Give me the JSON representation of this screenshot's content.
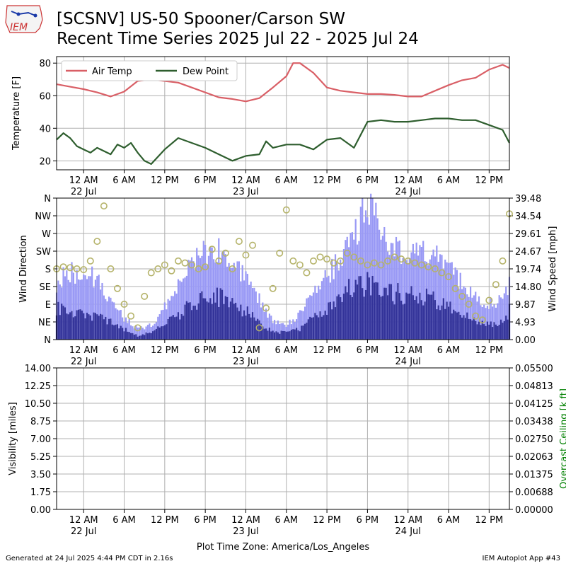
{
  "header": {
    "logo_text": "IEM",
    "title_line1": "[SCSNV] US-50 Spooner/Carson SW",
    "title_line2": "Recent Time Series 2025 Jul 22 - 2025 Jul 24"
  },
  "footer": {
    "generated": "Generated at 24 Jul 2025 4:44 PM CDT in 2.16s",
    "app": "IEM Autoplot App #43"
  },
  "colors": {
    "air_temp": "#d95f66",
    "dew_point": "#2e5e2e",
    "gust_bar": "#9999f5",
    "speed_bar": "#333399",
    "direction_marker": "#b5b36a",
    "ceiling_label": "#008000",
    "grid": "#b0b0b0"
  },
  "chart_data": [
    {
      "type": "line",
      "panel": "temperature",
      "ylabel": "Temperature [F]",
      "ylim": [
        14.5,
        84
      ],
      "yticks": [
        "20",
        "40",
        "60",
        "80"
      ],
      "xlim_hours": [
        0,
        67
      ],
      "xticks": [
        {
          "label": "12 AM",
          "sub": "22 Jul"
        },
        {
          "label": "6 AM",
          "sub": ""
        },
        {
          "label": "12 PM",
          "sub": ""
        },
        {
          "label": "6 PM",
          "sub": ""
        },
        {
          "label": "12 AM",
          "sub": "23 Jul"
        },
        {
          "label": "6 AM",
          "sub": ""
        },
        {
          "label": "12 PM",
          "sub": ""
        },
        {
          "label": "6 PM",
          "sub": ""
        },
        {
          "label": "12 AM",
          "sub": "24 Jul"
        },
        {
          "label": "6 AM",
          "sub": ""
        },
        {
          "label": "12 PM",
          "sub": ""
        }
      ],
      "legend": {
        "placement": "upper-left",
        "entries": [
          "Air Temp",
          "Dew Point"
        ]
      },
      "grid": true,
      "series": [
        {
          "name": "Air Temp",
          "x": [
            0,
            2,
            4,
            6,
            8,
            10,
            12,
            14,
            16,
            18,
            20,
            22,
            24,
            26,
            28,
            30,
            32,
            34,
            35,
            36,
            38,
            40,
            42,
            44,
            46,
            48,
            50,
            52,
            54,
            56,
            58,
            60,
            62,
            64,
            66,
            67
          ],
          "y": [
            67,
            65.5,
            64,
            62,
            59.5,
            62.5,
            69,
            70,
            69,
            68,
            65,
            62,
            59,
            58,
            56.5,
            58.5,
            65,
            72,
            80,
            80,
            74,
            65,
            63,
            62,
            61,
            61,
            60.5,
            59.5,
            59.5,
            63,
            66.5,
            69.5,
            71,
            76,
            79,
            77
          ]
        },
        {
          "name": "Dew Point",
          "x": [
            0,
            1,
            2,
            3,
            4,
            5,
            6,
            8,
            9,
            10,
            11,
            12,
            13,
            14,
            16,
            18,
            20,
            22,
            24,
            26,
            28,
            30,
            31,
            32,
            34,
            36,
            38,
            40,
            42,
            44,
            46,
            48,
            50,
            52,
            54,
            56,
            58,
            60,
            62,
            64,
            66,
            67
          ],
          "y": [
            33,
            37,
            34,
            29,
            27,
            25,
            28,
            24,
            30,
            28,
            31,
            25,
            20,
            18,
            27,
            34,
            31,
            28,
            24,
            20,
            23,
            24,
            32,
            28,
            30,
            30,
            27,
            33,
            34,
            28,
            44,
            45,
            44,
            44,
            45,
            46,
            46,
            45,
            45,
            42,
            39,
            31
          ]
        }
      ]
    },
    {
      "type": "bar",
      "panel": "wind",
      "ylabel": "Wind Direction",
      "ylabel_right": "Wind Speed [mph]",
      "yticks_left": [
        "N",
        "NE",
        "E",
        "SE",
        "S",
        "SW",
        "W",
        "NW",
        "N"
      ],
      "yticks_right": [
        "0.00",
        "4.93",
        "9.87",
        "14.80",
        "19.74",
        "24.67",
        "29.61",
        "34.54",
        "39.48"
      ],
      "ylim_speed": [
        0,
        39.48
      ],
      "ylim_direction": [
        0,
        360
      ],
      "xlim_hours": [
        0,
        67
      ],
      "grid": true,
      "series": [
        {
          "name": "Wind Gust",
          "x": [
            0,
            2,
            4,
            6,
            8,
            10,
            12,
            14,
            16,
            18,
            20,
            22,
            24,
            26,
            28,
            30,
            32,
            34,
            36,
            38,
            40,
            42,
            44,
            46,
            48,
            50,
            52,
            54,
            56,
            58,
            60,
            62,
            64,
            66,
            67
          ],
          "values": [
            16,
            19,
            19,
            17,
            11,
            6,
            3,
            4,
            9,
            16,
            21,
            25,
            25,
            20,
            17,
            11,
            5,
            4,
            7,
            13,
            18,
            22,
            30,
            37,
            32,
            25,
            24,
            25,
            23,
            20,
            16,
            12,
            10,
            11,
            16
          ]
        },
        {
          "name": "Wind Speed",
          "x": [
            0,
            2,
            4,
            6,
            8,
            10,
            12,
            14,
            16,
            18,
            20,
            22,
            24,
            26,
            28,
            30,
            32,
            34,
            36,
            38,
            40,
            42,
            44,
            46,
            48,
            50,
            52,
            54,
            56,
            58,
            60,
            62,
            64,
            66,
            67
          ],
          "values": [
            9,
            8,
            7,
            6,
            5,
            3,
            1,
            2,
            4,
            7,
            10,
            12,
            12,
            10,
            8,
            5,
            2,
            2,
            3,
            6,
            9,
            12,
            15,
            16,
            15,
            13,
            12,
            12,
            11,
            9,
            7,
            5,
            4,
            5,
            8
          ]
        },
        {
          "name": "Wind Direction",
          "marker": "circle",
          "x": [
            0,
            1,
            2,
            3,
            4,
            5,
            6,
            7,
            8,
            9,
            10,
            11,
            12,
            13,
            14,
            15,
            16,
            17,
            18,
            19,
            20,
            21,
            22,
            23,
            24,
            25,
            26,
            27,
            28,
            29,
            30,
            31,
            32,
            33,
            34,
            35,
            36,
            37,
            38,
            39,
            40,
            41,
            42,
            43,
            44,
            45,
            46,
            47,
            48,
            49,
            50,
            51,
            52,
            53,
            54,
            55,
            56,
            57,
            58,
            59,
            60,
            61,
            62,
            63,
            64,
            65,
            66,
            67
          ],
          "y": [
            180,
            185,
            183,
            180,
            178,
            200,
            250,
            340,
            180,
            130,
            90,
            60,
            30,
            110,
            170,
            180,
            190,
            175,
            200,
            195,
            190,
            180,
            185,
            230,
            200,
            220,
            180,
            250,
            215,
            240,
            30,
            80,
            130,
            220,
            330,
            200,
            190,
            170,
            200,
            210,
            205,
            195,
            200,
            220,
            210,
            200,
            190,
            195,
            190,
            200,
            210,
            205,
            200,
            195,
            190,
            185,
            180,
            170,
            160,
            130,
            110,
            90,
            60,
            50,
            100,
            140,
            200,
            320
          ]
        }
      ]
    },
    {
      "type": "line",
      "panel": "visibility",
      "ylabel": "Visibility [miles]",
      "ylabel_right": "Overcast Ceiling [k ft]",
      "yticks_left": [
        "0.00",
        "1.75",
        "3.50",
        "5.25",
        "7.00",
        "8.75",
        "10.50",
        "12.25",
        "14.00"
      ],
      "yticks_right": [
        "0.00000",
        "0.00688",
        "0.01375",
        "0.02063",
        "0.02750",
        "0.03438",
        "0.04125",
        "0.04813",
        "0.05500"
      ],
      "xlabel": "Plot Time Zone: America/Los_Angeles",
      "xlim_hours": [
        0,
        67
      ],
      "grid": true,
      "series": []
    }
  ]
}
